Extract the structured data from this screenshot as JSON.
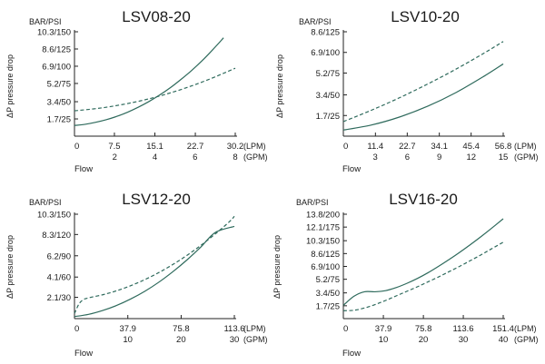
{
  "colors": {
    "curve": "#2e6a5c",
    "axis": "#222222",
    "text": "#1a1a1a"
  },
  "chart_data": [
    {
      "type": "line",
      "title": "LSV08-20",
      "ylabel": "ΔP pressure drop",
      "yunit": "BAR/PSI",
      "xlabel": "Flow",
      "x_unit_lpm": "(LPM)",
      "x_unit_gpm": "(GPM)",
      "xlim": [
        0,
        30.2
      ],
      "ylim": [
        0,
        10.3
      ],
      "x_ticks_lpm": [
        {
          "value": 0,
          "label": "0"
        },
        {
          "value": 7.5,
          "label": "7.5"
        },
        {
          "value": 15.1,
          "label": "15.1"
        },
        {
          "value": 22.7,
          "label": "22.7"
        },
        {
          "value": 30.2,
          "label": "30.2"
        }
      ],
      "x_ticks_gpm": [
        {
          "value": 7.55,
          "label": "2"
        },
        {
          "value": 15.1,
          "label": "4"
        },
        {
          "value": 22.65,
          "label": "6"
        },
        {
          "value": 30.2,
          "label": "8"
        }
      ],
      "y_ticks": [
        {
          "value": 1.7,
          "label": "1.7/25"
        },
        {
          "value": 3.4,
          "label": "3.4/50"
        },
        {
          "value": 5.2,
          "label": "5.2/75"
        },
        {
          "value": 6.9,
          "label": "6.9/100"
        },
        {
          "value": 8.6,
          "label": "8.6/125"
        },
        {
          "value": 10.3,
          "label": "10.3/150"
        }
      ],
      "series": [
        {
          "name": "solid",
          "style": "solid",
          "x": [
            0,
            2,
            4,
            6,
            8,
            10,
            12,
            14,
            16,
            18,
            20,
            22,
            24,
            26,
            28
          ],
          "y": [
            1.05,
            1.17,
            1.37,
            1.63,
            1.96,
            2.37,
            2.86,
            3.42,
            4.06,
            4.78,
            5.6,
            6.48,
            7.46,
            8.55,
            9.7
          ]
        },
        {
          "name": "dashed",
          "style": "dashed",
          "x": [
            0,
            5,
            10,
            15,
            20,
            25,
            30.2
          ],
          "y": [
            2.5,
            2.78,
            3.22,
            3.82,
            4.6,
            5.55,
            6.7
          ]
        }
      ]
    },
    {
      "type": "line",
      "title": "LSV10-20",
      "ylabel": "ΔP pressure drop",
      "yunit": "BAR/PSI",
      "xlabel": "Flow",
      "x_unit_lpm": "(LPM)",
      "x_unit_gpm": "(GPM)",
      "xlim": [
        0,
        56.8
      ],
      "ylim": [
        0,
        8.6
      ],
      "x_ticks_lpm": [
        {
          "value": 0,
          "label": "0"
        },
        {
          "value": 11.4,
          "label": "11.4"
        },
        {
          "value": 22.7,
          "label": "22.7"
        },
        {
          "value": 34.1,
          "label": "34.1"
        },
        {
          "value": 45.4,
          "label": "45.4"
        },
        {
          "value": 56.8,
          "label": "56.8"
        }
      ],
      "x_ticks_gpm": [
        {
          "value": 11.36,
          "label": "3"
        },
        {
          "value": 22.72,
          "label": "6"
        },
        {
          "value": 34.08,
          "label": "9"
        },
        {
          "value": 45.44,
          "label": "12"
        },
        {
          "value": 56.8,
          "label": "15"
        }
      ],
      "y_ticks": [
        {
          "value": 1.7,
          "label": "1.7/25"
        },
        {
          "value": 3.4,
          "label": "3.4/50"
        },
        {
          "value": 5.2,
          "label": "5.2/75"
        },
        {
          "value": 6.9,
          "label": "6.9/100"
        },
        {
          "value": 8.6,
          "label": "8.6/125"
        }
      ],
      "series": [
        {
          "name": "solid",
          "style": "solid",
          "x": [
            0,
            10,
            20,
            30,
            40,
            50,
            56.8
          ],
          "y": [
            0.5,
            0.92,
            1.58,
            2.47,
            3.59,
            4.94,
            5.95
          ]
        },
        {
          "name": "dashed",
          "style": "dashed",
          "x": [
            0,
            10,
            20,
            30,
            40,
            50,
            56.8
          ],
          "y": [
            1.2,
            2.14,
            3.17,
            4.3,
            5.52,
            6.84,
            7.8
          ]
        }
      ]
    },
    {
      "type": "line",
      "title": "LSV12-20",
      "ylabel": "ΔP pressure drop",
      "yunit": "BAR/PSI",
      "xlabel": "Flow",
      "x_unit_lpm": "(LPM)",
      "x_unit_gpm": "(GPM)",
      "xlim": [
        0,
        113.6
      ],
      "ylim": [
        0,
        10.3
      ],
      "x_ticks_lpm": [
        {
          "value": 0,
          "label": "0"
        },
        {
          "value": 37.9,
          "label": "37.9"
        },
        {
          "value": 75.8,
          "label": "75.8"
        },
        {
          "value": 113.6,
          "label": "113.6"
        }
      ],
      "x_ticks_gpm": [
        {
          "value": 37.87,
          "label": "10"
        },
        {
          "value": 75.73,
          "label": "20"
        },
        {
          "value": 113.6,
          "label": "30"
        }
      ],
      "y_ticks": [
        {
          "value": 2.1,
          "label": "2.1/30"
        },
        {
          "value": 4.1,
          "label": "4.1/60"
        },
        {
          "value": 6.2,
          "label": "6.2/90"
        },
        {
          "value": 8.3,
          "label": "8.3/120"
        },
        {
          "value": 10.3,
          "label": "10.3/150"
        }
      ],
      "series": [
        {
          "name": "solid",
          "style": "solid",
          "x": [
            0,
            10,
            20,
            30,
            40,
            50,
            60,
            70,
            80,
            90,
            100,
            113.6
          ],
          "y": [
            0.2,
            0.42,
            0.8,
            1.3,
            1.94,
            2.7,
            3.6,
            4.64,
            5.8,
            7.09,
            8.5,
            9.1
          ]
        },
        {
          "name": "dashed",
          "style": "dashed",
          "x": [
            0,
            3,
            6,
            10,
            20,
            30,
            40,
            50,
            60,
            70,
            80,
            90,
            100,
            110,
            113.6
          ],
          "y": [
            0.5,
            1.4,
            1.85,
            2.05,
            2.35,
            2.75,
            3.25,
            3.85,
            4.55,
            5.35,
            6.25,
            7.25,
            8.35,
            9.55,
            10.1
          ]
        }
      ]
    },
    {
      "type": "line",
      "title": "LSV16-20",
      "ylabel": "ΔP pressure drop",
      "yunit": "BAR/PSI",
      "xlabel": "Flow",
      "x_unit_lpm": "(LPM)",
      "x_unit_gpm": "(GPM)",
      "xlim": [
        0,
        151.4
      ],
      "ylim": [
        0,
        13.8
      ],
      "x_ticks_lpm": [
        {
          "value": 0,
          "label": "0"
        },
        {
          "value": 37.9,
          "label": "37.9"
        },
        {
          "value": 75.8,
          "label": "75.8"
        },
        {
          "value": 113.6,
          "label": "113.6"
        },
        {
          "value": 151.4,
          "label": "151.4"
        }
      ],
      "x_ticks_gpm": [
        {
          "value": 37.85,
          "label": "10"
        },
        {
          "value": 75.7,
          "label": "20"
        },
        {
          "value": 113.55,
          "label": "30"
        },
        {
          "value": 151.4,
          "label": "40"
        }
      ],
      "y_ticks": [
        {
          "value": 1.7,
          "label": "1.7/25"
        },
        {
          "value": 3.4,
          "label": "3.4/50"
        },
        {
          "value": 5.2,
          "label": "5.2/75"
        },
        {
          "value": 6.9,
          "label": "6.9/100"
        },
        {
          "value": 8.6,
          "label": "8.6/125"
        },
        {
          "value": 10.3,
          "label": "10.3/150"
        },
        {
          "value": 12.1,
          "label": "12.1/175"
        },
        {
          "value": 13.8,
          "label": "13.8/200"
        }
      ],
      "series": [
        {
          "name": "solid",
          "style": "solid",
          "x": [
            0,
            10,
            20,
            30,
            40,
            50,
            60,
            70,
            80,
            90,
            100,
            110,
            120,
            130,
            140,
            151.4
          ],
          "y": [
            1.75,
            2.95,
            3.55,
            3.55,
            3.7,
            4.1,
            4.65,
            5.3,
            6.05,
            6.9,
            7.8,
            8.75,
            9.75,
            10.8,
            11.9,
            13.2
          ]
        },
        {
          "name": "dashed",
          "style": "dashed",
          "x": [
            0,
            10,
            20,
            30,
            40,
            50,
            60,
            70,
            80,
            90,
            100,
            110,
            120,
            130,
            140,
            151.4
          ],
          "y": [
            1.05,
            1.1,
            1.4,
            1.85,
            2.4,
            3.0,
            3.6,
            4.2,
            4.85,
            5.5,
            6.2,
            6.9,
            7.65,
            8.4,
            9.2,
            10.1
          ]
        }
      ]
    }
  ]
}
